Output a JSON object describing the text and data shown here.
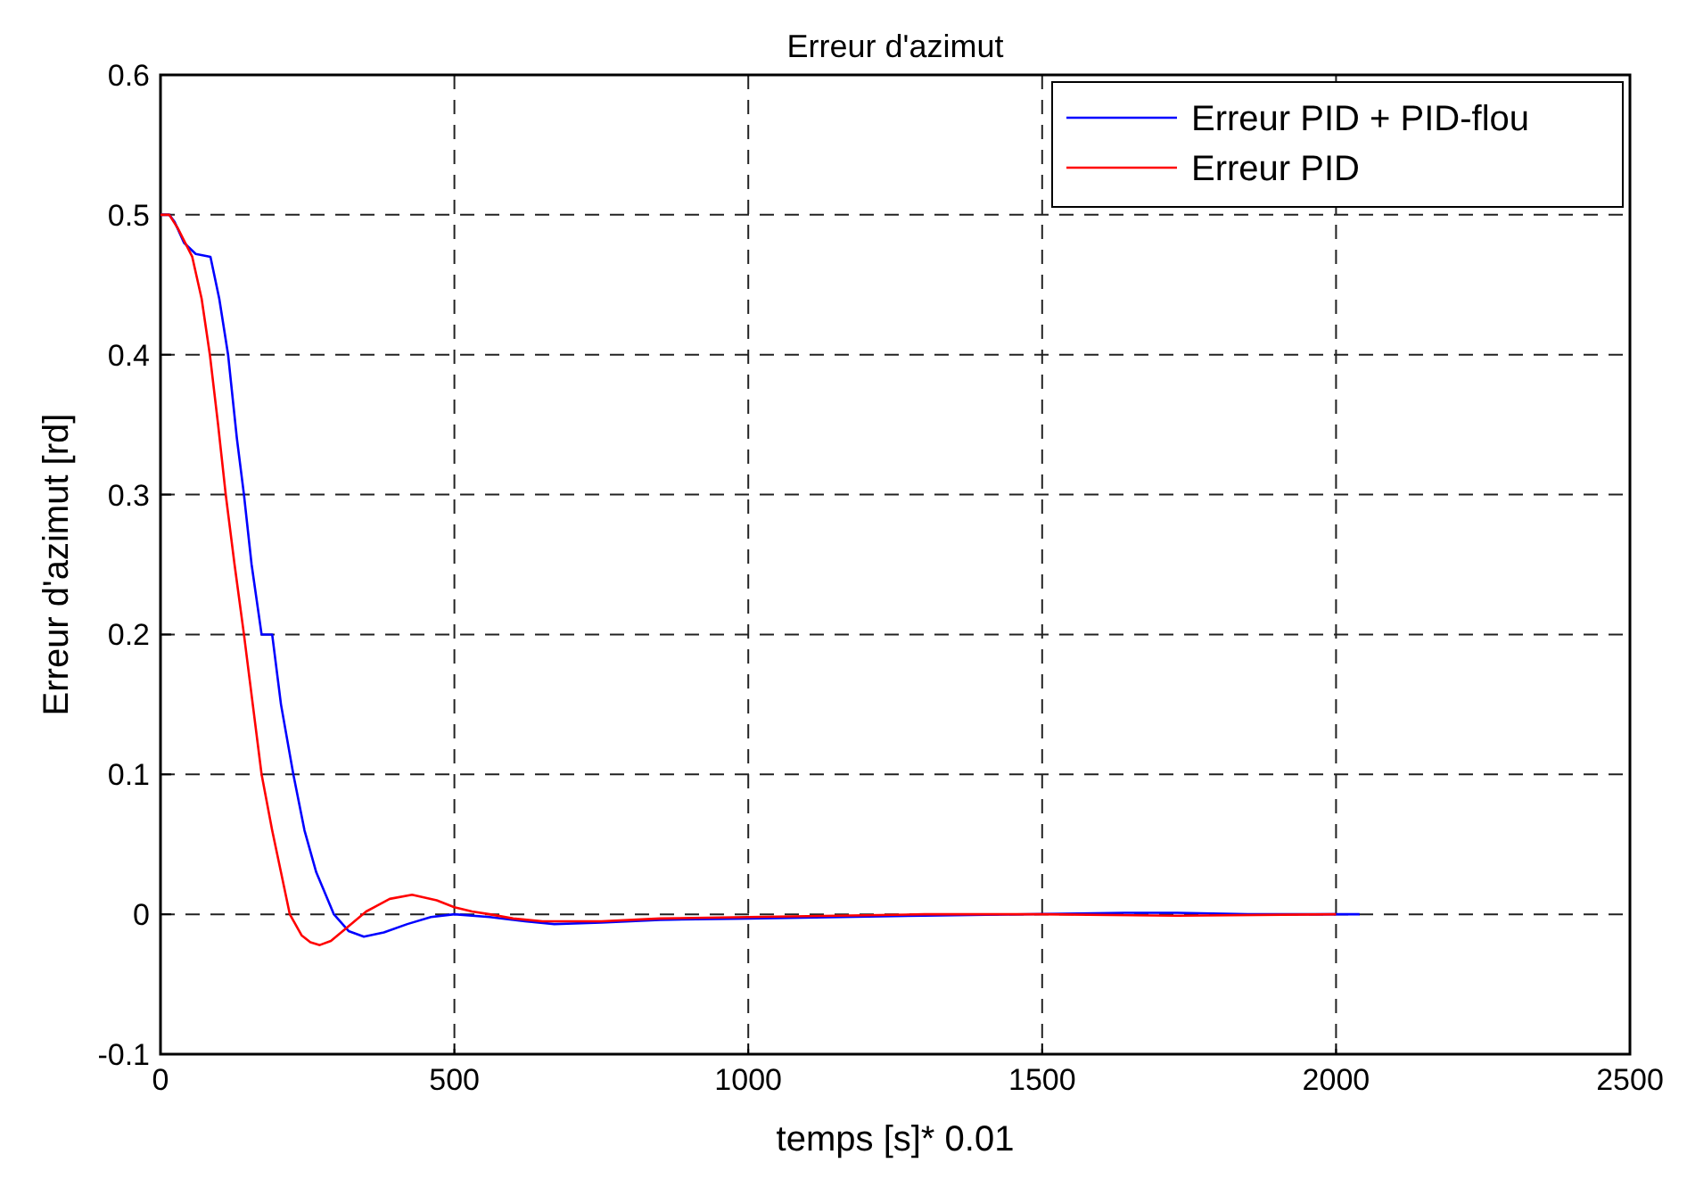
{
  "chart_data": {
    "type": "line",
    "title": "Erreur d'azimut",
    "xlabel": "temps [s]* 0.01",
    "ylabel": "Erreur d'azimut [rd]",
    "xlim": [
      0,
      2500
    ],
    "ylim": [
      -0.1,
      0.6
    ],
    "xticks": [
      0,
      500,
      1000,
      1500,
      2000,
      2500
    ],
    "yticks": [
      -0.1,
      0,
      0.1,
      0.2,
      0.3,
      0.4,
      0.5,
      0.6
    ],
    "grid": true,
    "legend": "top right",
    "line_style": "solid",
    "marker": "none",
    "series": [
      {
        "name": "Erreur PID + PID-flou",
        "color": "#0000ff",
        "x": [
          0,
          15,
          24,
          40,
          60,
          85,
          100,
          115,
          130,
          142,
          155,
          172,
          190,
          205,
          226,
          245,
          265,
          295,
          320,
          346,
          380,
          420,
          460,
          500,
          560,
          620,
          670,
          750,
          850,
          1000,
          1160,
          1300,
          1640,
          1730,
          1850,
          2040
        ],
        "values": [
          0.5,
          0.5,
          0.495,
          0.48,
          0.472,
          0.47,
          0.44,
          0.4,
          0.34,
          0.3,
          0.25,
          0.2,
          0.2,
          0.15,
          0.1,
          0.06,
          0.03,
          0,
          -0.012,
          -0.016,
          -0.013,
          -0.007,
          -0.002,
          0,
          -0.002,
          -0.005,
          -0.007,
          -0.006,
          -0.004,
          -0.003,
          -0.002,
          -0.001,
          0.001,
          0.001,
          0,
          0
        ]
      },
      {
        "name": "Erreur PID",
        "color": "#ff0000",
        "x": [
          0,
          15,
          30,
          54,
          70,
          84,
          98,
          111,
          126,
          142,
          157,
          172,
          190,
          205,
          220,
          240,
          255,
          271,
          290,
          316,
          350,
          390,
          428,
          470,
          500,
          530,
          560,
          600,
          650,
          750,
          850,
          1000,
          1150,
          1300,
          1500,
          1730,
          2000
        ],
        "values": [
          0.5,
          0.5,
          0.49,
          0.47,
          0.44,
          0.4,
          0.35,
          0.3,
          0.25,
          0.2,
          0.15,
          0.1,
          0.06,
          0.03,
          0,
          -0.015,
          -0.02,
          -0.022,
          -0.019,
          -0.01,
          0.002,
          0.011,
          0.014,
          0.01,
          0.005,
          0.002,
          0,
          -0.003,
          -0.005,
          -0.005,
          -0.003,
          -0.002,
          -0.001,
          0,
          0,
          -0.001,
          0
        ]
      }
    ]
  }
}
